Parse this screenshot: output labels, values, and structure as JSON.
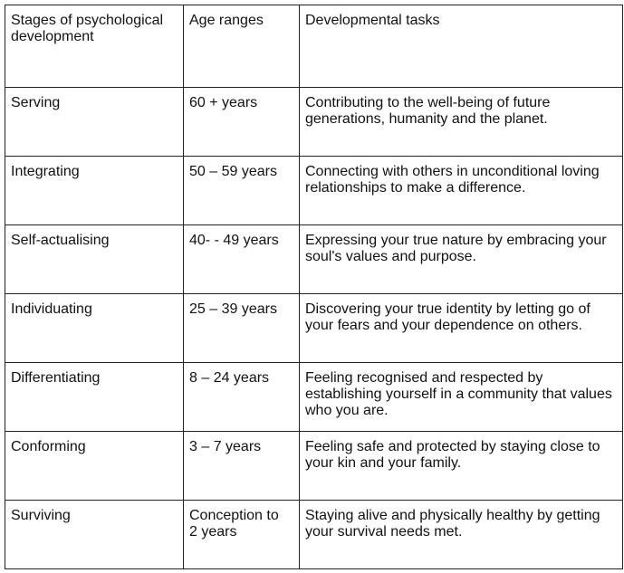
{
  "table": {
    "header": [
      "Stages of psychological development",
      "Age ranges",
      "Developmental tasks"
    ],
    "rows": [
      [
        "Serving",
        "60 + years",
        "Contributing to the well-being of future generations, humanity and the planet."
      ],
      [
        "Integrating",
        "50 – 59 years",
        "Connecting with others in unconditional loving relationships to make a difference."
      ],
      [
        "Self-actualising",
        "40- - 49 years",
        "Expressing your true nature by embracing your soul's values and purpose."
      ],
      [
        "Individuating",
        "25 – 39 years",
        "Discovering your true identity by letting go of your fears and your dependence on others."
      ],
      [
        "Differentiating",
        "8 – 24 years",
        "Feeling recognised and respected by establishing yourself in a community that values who you are."
      ],
      [
        "Conforming",
        "3 – 7 years",
        "Feeling safe and protected by staying close to your kin and your family."
      ],
      [
        "Surviving",
        "Conception to 2 years",
        "Staying alive and physically healthy by getting your survival needs met."
      ]
    ]
  }
}
